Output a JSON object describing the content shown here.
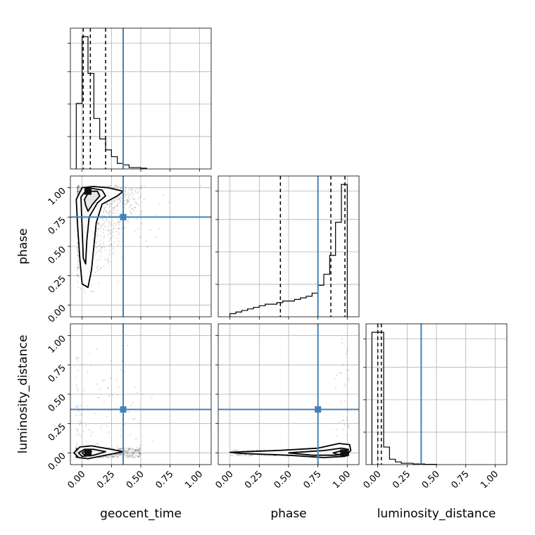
{
  "chart_data": {
    "type": "corner",
    "parameters": [
      "geocent_time",
      "phase",
      "luminosity_distance"
    ],
    "axis_range": [
      -0.1,
      1.1
    ],
    "ticks": [
      0.0,
      0.25,
      0.5,
      0.75,
      1.0
    ],
    "tick_labels": [
      "0.00",
      "0.25",
      "0.50",
      "0.75",
      "1.00"
    ],
    "grid": true,
    "colors": {
      "truth": "#4682b4",
      "hist": "#000000",
      "points": "#000000"
    },
    "truths": {
      "geocent_time": 0.35,
      "phase": 0.75,
      "luminosity_distance": 0.37
    },
    "quantiles": {
      "geocent_time": [
        0.01,
        0.07,
        0.2
      ],
      "phase": [
        0.43,
        0.86,
        0.98
      ],
      "luminosity_distance": [
        0.0,
        0.03
      ]
    },
    "histograms": {
      "geocent_time": {
        "edges": [
          -0.05,
          0.0,
          0.05,
          0.1,
          0.15,
          0.2,
          0.25,
          0.3,
          0.35,
          0.4,
          0.45,
          0.5,
          0.55
        ],
        "counts": [
          0.48,
          0.97,
          0.7,
          0.37,
          0.22,
          0.14,
          0.09,
          0.04,
          0.03,
          0.01,
          0.01,
          0.005
        ]
      },
      "phase": {
        "edges": [
          0.0,
          0.05,
          0.1,
          0.15,
          0.2,
          0.25,
          0.3,
          0.35,
          0.4,
          0.45,
          0.5,
          0.55,
          0.6,
          0.65,
          0.7,
          0.75,
          0.8,
          0.85,
          0.9,
          0.95,
          1.0
        ],
        "counts": [
          0.02,
          0.03,
          0.04,
          0.05,
          0.06,
          0.07,
          0.08,
          0.08,
          0.09,
          0.1,
          0.1,
          0.11,
          0.12,
          0.13,
          0.15,
          0.2,
          0.27,
          0.39,
          0.6,
          0.84
        ]
      },
      "luminosity_distance": {
        "edges": [
          -0.05,
          0.0,
          0.05,
          0.1,
          0.15,
          0.2,
          0.25,
          0.3,
          0.35,
          0.4,
          0.45,
          0.5
        ],
        "counts": [
          0.98,
          0.98,
          0.13,
          0.04,
          0.02,
          0.01,
          0.01,
          0.005,
          0.005,
          0.002,
          0.002
        ]
      }
    },
    "contour_levels": {
      "phase_vs_geocent_time": [
        [
          [
            -0.05,
            0.9
          ],
          [
            0.0,
            1.0
          ],
          [
            0.1,
            1.01
          ],
          [
            0.22,
            1.0
          ],
          [
            0.35,
            0.97
          ],
          [
            0.3,
            0.93
          ],
          [
            0.17,
            0.86
          ],
          [
            0.12,
            0.7
          ],
          [
            0.1,
            0.5
          ],
          [
            0.08,
            0.3
          ],
          [
            0.05,
            0.15
          ],
          [
            0.0,
            0.18
          ],
          [
            -0.02,
            0.4
          ],
          [
            -0.04,
            0.7
          ]
        ],
        [
          [
            -0.01,
            0.92
          ],
          [
            0.05,
            1.0
          ],
          [
            0.17,
            0.98
          ],
          [
            0.2,
            0.93
          ],
          [
            0.13,
            0.87
          ],
          [
            0.06,
            0.75
          ],
          [
            0.04,
            0.55
          ],
          [
            0.03,
            0.35
          ],
          [
            0.01,
            0.4
          ],
          [
            0.0,
            0.65
          ]
        ],
        [
          [
            0.02,
            0.9
          ],
          [
            0.06,
            0.97
          ],
          [
            0.13,
            0.97
          ],
          [
            0.15,
            0.93
          ],
          [
            0.09,
            0.86
          ],
          [
            0.05,
            0.8
          ],
          [
            0.03,
            0.85
          ]
        ]
      ],
      "luminosity_distance_vs_geocent_time": [
        [
          [
            -0.07,
            0.0
          ],
          [
            -0.02,
            0.05
          ],
          [
            0.08,
            0.06
          ],
          [
            0.25,
            0.03
          ],
          [
            0.35,
            0.01
          ],
          [
            0.2,
            -0.02
          ],
          [
            0.05,
            -0.05
          ],
          [
            -0.03,
            -0.04
          ]
        ],
        [
          [
            -0.03,
            0.0
          ],
          [
            0.02,
            0.03
          ],
          [
            0.1,
            0.03
          ],
          [
            0.2,
            0.01
          ],
          [
            0.1,
            -0.02
          ],
          [
            0.0,
            -0.03
          ]
        ],
        [
          [
            0.0,
            0.0
          ],
          [
            0.03,
            0.02
          ],
          [
            0.08,
            0.01
          ],
          [
            0.06,
            -0.01
          ],
          [
            0.02,
            -0.02
          ]
        ]
      ],
      "luminosity_distance_vs_phase": [
        [
          [
            0.0,
            0.005
          ],
          [
            0.4,
            0.02
          ],
          [
            0.75,
            0.04
          ],
          [
            0.93,
            0.08
          ],
          [
            1.02,
            0.07
          ],
          [
            1.03,
            0.02
          ],
          [
            0.98,
            -0.03
          ],
          [
            0.8,
            -0.04
          ],
          [
            0.5,
            -0.02
          ],
          [
            0.1,
            -0.005
          ]
        ],
        [
          [
            0.5,
            0.0
          ],
          [
            0.8,
            0.02
          ],
          [
            0.95,
            0.04
          ],
          [
            1.01,
            0.03
          ],
          [
            1.0,
            -0.01
          ],
          [
            0.9,
            -0.02
          ],
          [
            0.7,
            -0.02
          ]
        ],
        [
          [
            0.88,
            0.0
          ],
          [
            0.96,
            0.02
          ],
          [
            1.0,
            0.01
          ],
          [
            0.99,
            -0.01
          ],
          [
            0.92,
            -0.015
          ]
        ]
      ]
    },
    "density_peaks": {
      "phase_vs_geocent_time": [
        0.05,
        0.97
      ],
      "luminosity_distance_vs_geocent_time": [
        0.05,
        0.0
      ],
      "luminosity_distance_vs_phase": [
        0.97,
        0.0
      ]
    },
    "xlabels": [
      "geocent_time",
      "phase",
      "luminosity_distance"
    ],
    "ylabels": [
      "phase",
      "luminosity_distance"
    ]
  }
}
